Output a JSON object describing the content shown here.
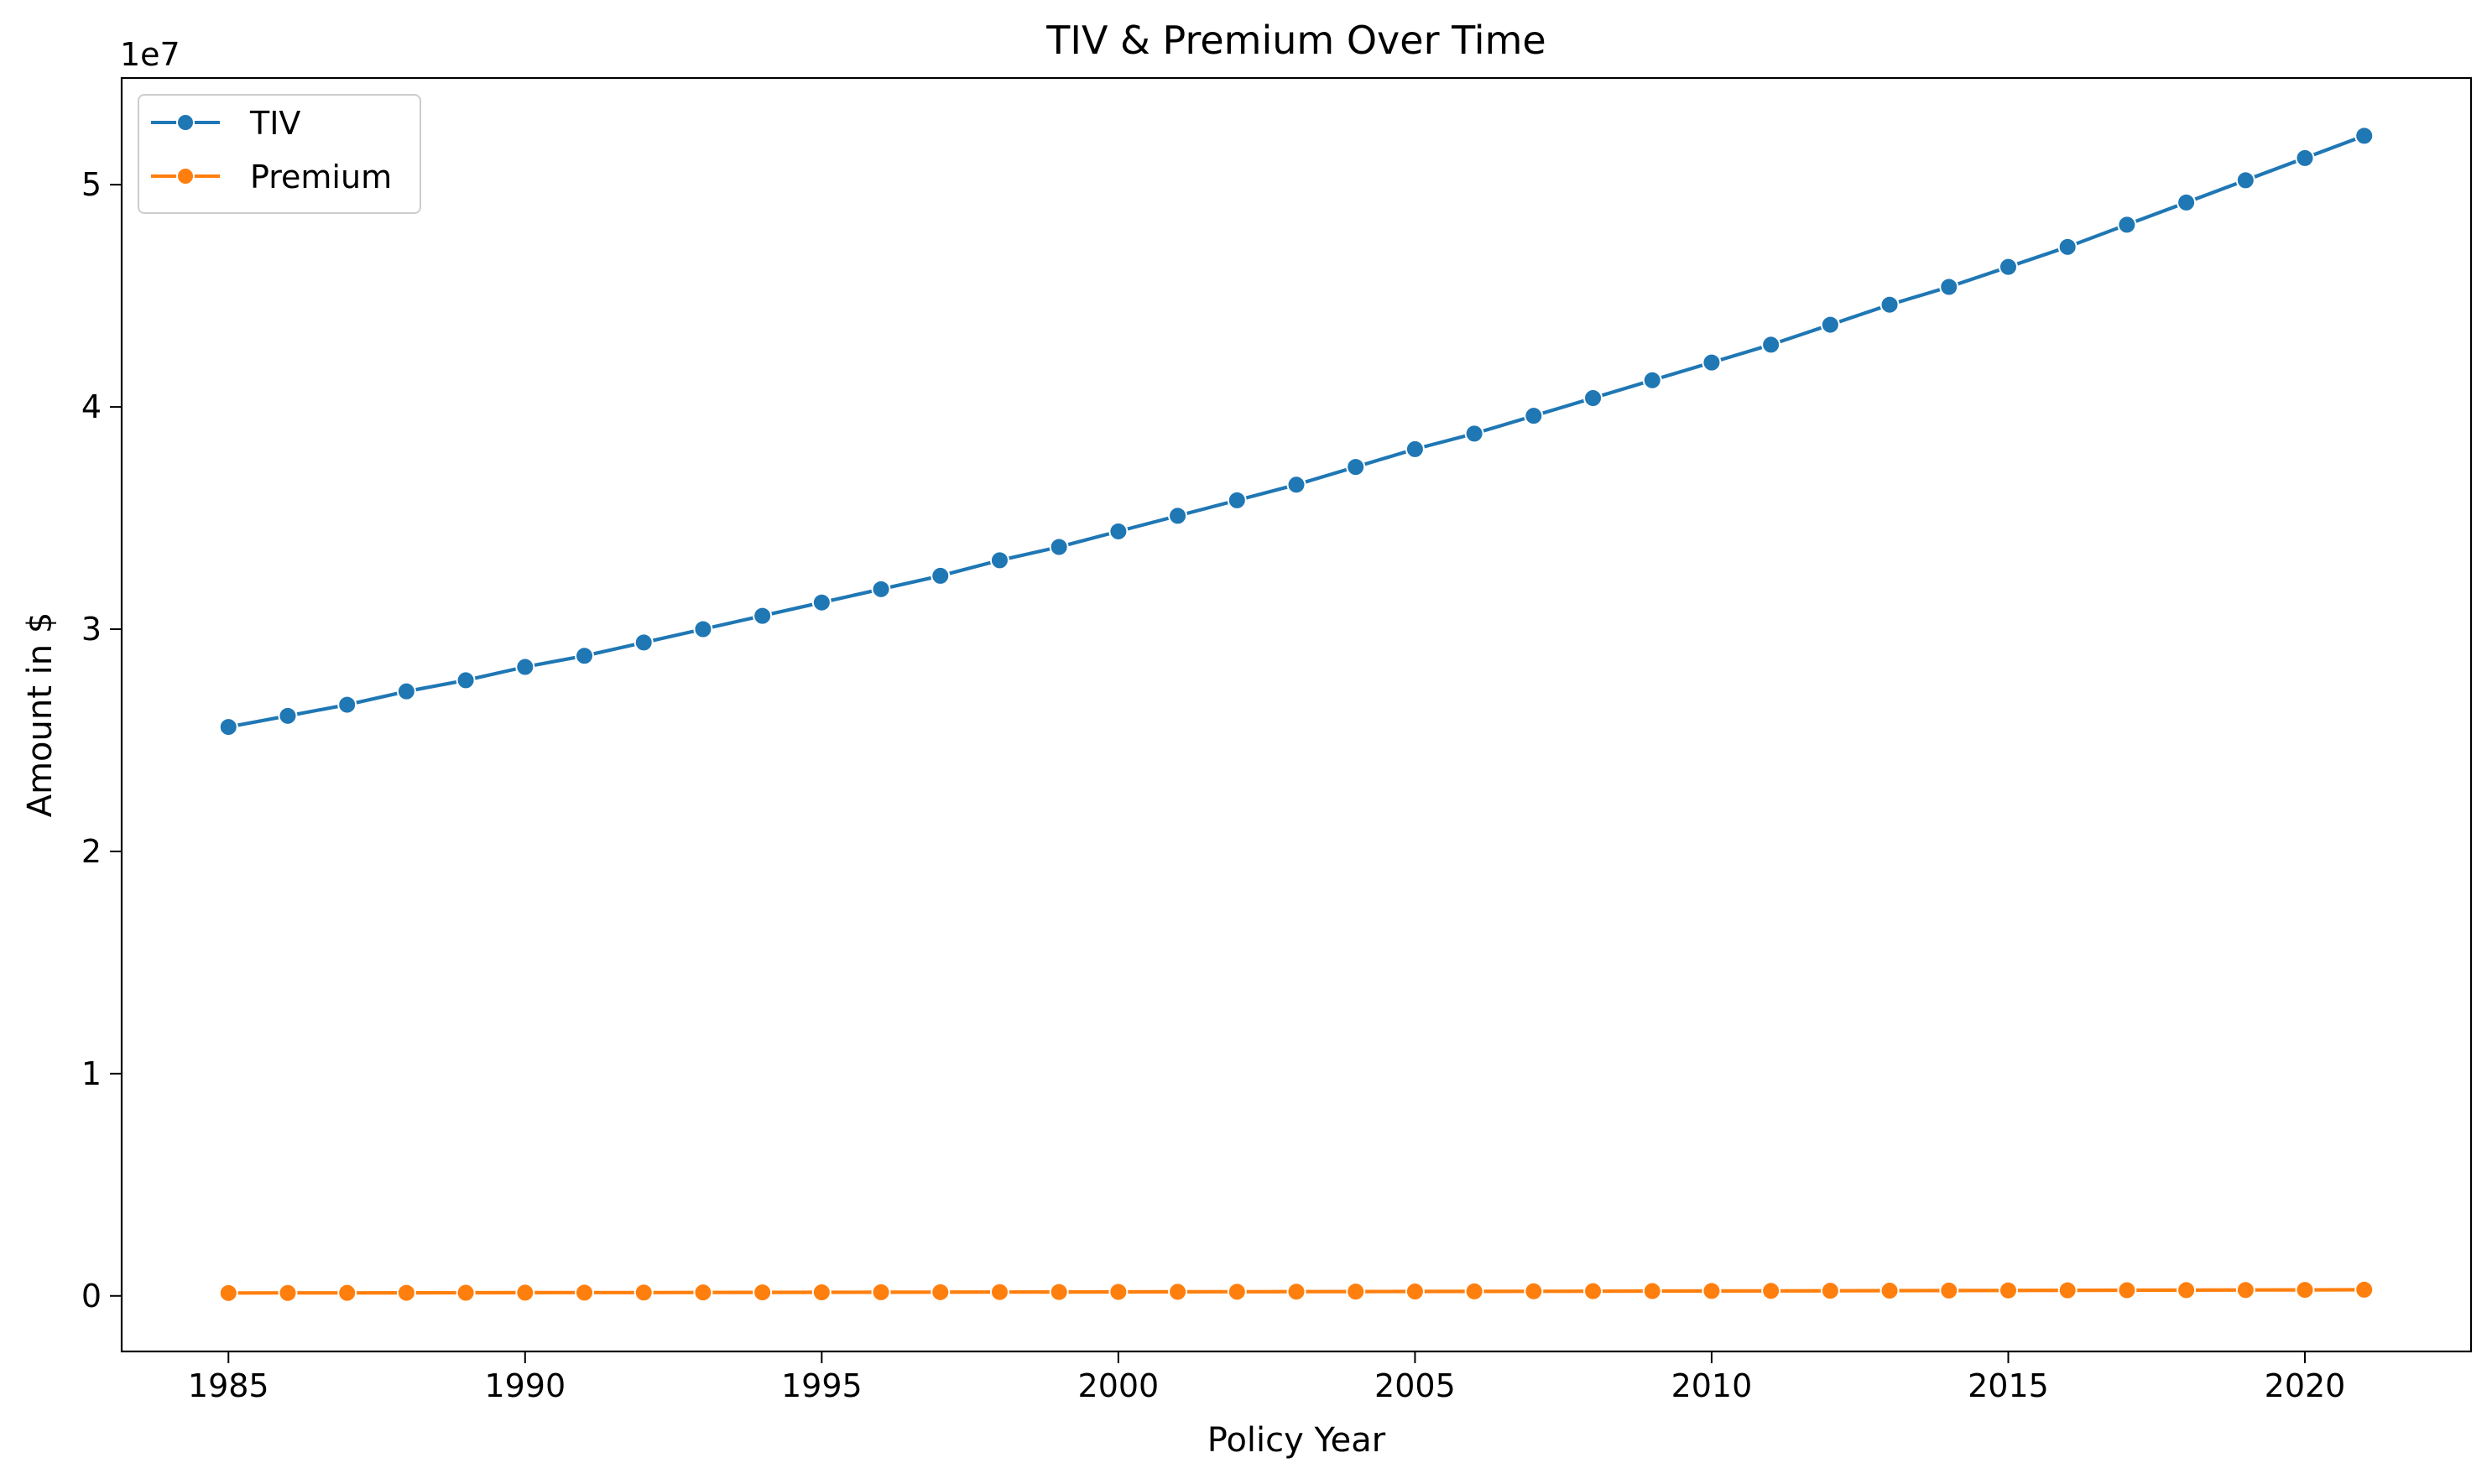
{
  "chart_data": {
    "type": "line",
    "title": "TIV & Premium Over Time",
    "xlabel": "Policy Year",
    "ylabel": "Amount in $",
    "y_offset_label": "1e7",
    "x": [
      1985,
      1986,
      1987,
      1988,
      1989,
      1990,
      1991,
      1992,
      1993,
      1994,
      1995,
      1996,
      1997,
      1998,
      1999,
      2000,
      2001,
      2002,
      2003,
      2004,
      2005,
      2006,
      2007,
      2008,
      2009,
      2010,
      2011,
      2012,
      2013,
      2014,
      2015,
      2016,
      2017,
      2018,
      2019,
      2020,
      2021
    ],
    "series": [
      {
        "name": "TIV",
        "color": "#1f77b4",
        "values": [
          25600000,
          26100000,
          26600000,
          27200000,
          27700000,
          28300000,
          28800000,
          29400000,
          30000000,
          30600000,
          31200000,
          31800000,
          32400000,
          33100000,
          33700000,
          34400000,
          35100000,
          35800000,
          36500000,
          37300000,
          38100000,
          38800000,
          39600000,
          40400000,
          41200000,
          42000000,
          42800000,
          43700000,
          44600000,
          45400000,
          46300000,
          47200000,
          48200000,
          49200000,
          50200000,
          51200000,
          52200000
        ]
      },
      {
        "name": "Premium",
        "color": "#ff7f0e",
        "values": [
          130000,
          133000,
          136000,
          139000,
          142000,
          145000,
          148000,
          151000,
          155000,
          158000,
          161000,
          165000,
          168000,
          172000,
          175000,
          179000,
          183000,
          187000,
          191000,
          195000,
          199000,
          203000,
          207000,
          212000,
          216000,
          221000,
          225000,
          230000,
          235000,
          240000,
          245000,
          250000,
          255000,
          261000,
          266000,
          272000,
          278000
        ]
      }
    ],
    "xlim": [
      1983.2,
      2022.8
    ],
    "ylim": [
      -2500000,
      54800000
    ],
    "x_ticks": [
      1985,
      1990,
      1995,
      2000,
      2005,
      2010,
      2015,
      2020
    ],
    "y_ticks": [
      0,
      10000000,
      20000000,
      30000000,
      40000000,
      50000000
    ],
    "y_tick_labels": [
      "0",
      "1",
      "2",
      "3",
      "4",
      "5"
    ],
    "grid": false,
    "legend_position": "top-left"
  }
}
